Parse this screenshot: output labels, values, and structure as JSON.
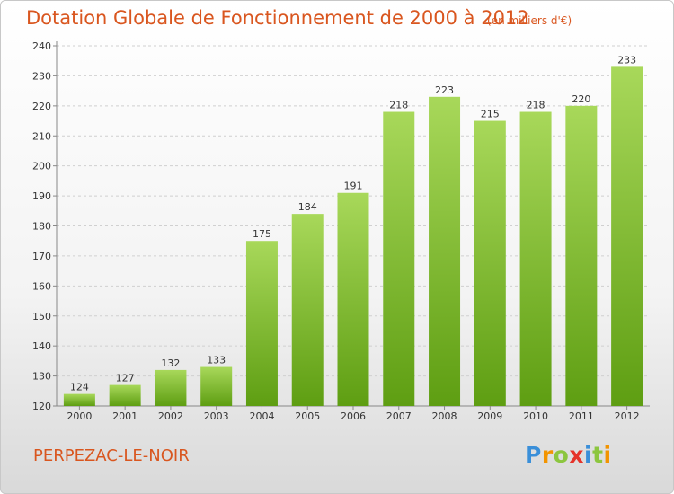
{
  "header": {
    "title": "Dotation Globale de Fonctionnement de 2000 à 2012",
    "unit": "(en milliers d'€)"
  },
  "footer": {
    "commune": "PERPEZAC-LE-NOIR",
    "logo_text": "Proxiti",
    "logo_letters": [
      {
        "ch": "P",
        "color": "#3a8fd9"
      },
      {
        "ch": "r",
        "color": "#f29400"
      },
      {
        "ch": "o",
        "color": "#8cc63f"
      },
      {
        "ch": "x",
        "color": "#e5332a"
      },
      {
        "ch": "i",
        "color": "#3a8fd9"
      },
      {
        "ch": "t",
        "color": "#8cc63f"
      },
      {
        "ch": "i",
        "color": "#f29400"
      }
    ]
  },
  "colors": {
    "accent": "#d9561f",
    "bar_light": "#a8d85a",
    "bar_dark": "#5e9e12",
    "grid": "#d0d0d0",
    "axis_text": "#333333"
  },
  "chart_data": {
    "type": "bar",
    "title": "Dotation Globale de Fonctionnement de 2000 à 2012",
    "subtitle": "(en milliers d'€)",
    "xlabel": "",
    "ylabel": "",
    "categories": [
      "2000",
      "2001",
      "2002",
      "2003",
      "2004",
      "2005",
      "2006",
      "2007",
      "2008",
      "2009",
      "2010",
      "2011",
      "2012"
    ],
    "values": [
      124,
      127,
      132,
      133,
      175,
      184,
      191,
      218,
      223,
      215,
      218,
      220,
      233
    ],
    "ylim": [
      120,
      240
    ],
    "yticks": [
      120,
      130,
      140,
      150,
      160,
      170,
      180,
      190,
      200,
      210,
      220,
      230,
      240
    ],
    "grid": true,
    "data_labels": true
  }
}
